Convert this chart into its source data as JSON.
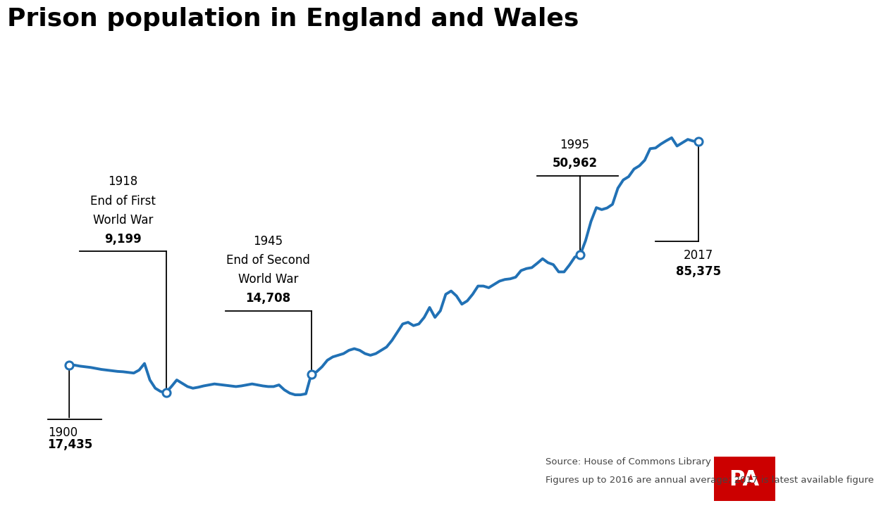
{
  "title": "Prison population in England and Wales",
  "title_fontsize": 26,
  "line_color": "#2171b5",
  "line_width": 2.8,
  "background_color": "#ffffff",
  "source_line1": "Source: House of Commons Library",
  "source_line2": "Figures up to 2016 are annual average; 2017 is latest available figure",
  "xlim": [
    1893,
    2025
  ],
  "ylim": [
    3000,
    102000
  ],
  "years": [
    1900,
    1901,
    1902,
    1903,
    1904,
    1905,
    1906,
    1907,
    1908,
    1909,
    1910,
    1911,
    1912,
    1913,
    1914,
    1915,
    1916,
    1917,
    1918,
    1919,
    1920,
    1921,
    1922,
    1923,
    1924,
    1925,
    1926,
    1927,
    1928,
    1929,
    1930,
    1931,
    1932,
    1933,
    1934,
    1935,
    1936,
    1937,
    1938,
    1939,
    1940,
    1941,
    1942,
    1943,
    1944,
    1945,
    1946,
    1947,
    1948,
    1949,
    1950,
    1951,
    1952,
    1953,
    1954,
    1955,
    1956,
    1957,
    1958,
    1959,
    1960,
    1961,
    1962,
    1963,
    1964,
    1965,
    1966,
    1967,
    1968,
    1969,
    1970,
    1971,
    1972,
    1973,
    1974,
    1975,
    1976,
    1977,
    1978,
    1979,
    1980,
    1981,
    1982,
    1983,
    1984,
    1985,
    1986,
    1987,
    1988,
    1989,
    1990,
    1991,
    1992,
    1993,
    1994,
    1995,
    1996,
    1997,
    1998,
    1999,
    2000,
    2001,
    2002,
    2003,
    2004,
    2005,
    2006,
    2007,
    2008,
    2009,
    2010,
    2011,
    2012,
    2013,
    2014,
    2015,
    2016,
    2017
  ],
  "values": [
    17435,
    17500,
    17200,
    17000,
    16800,
    16500,
    16200,
    16000,
    15800,
    15600,
    15500,
    15300,
    15100,
    16000,
    18000,
    13000,
    10500,
    9500,
    9199,
    11000,
    13000,
    12000,
    11000,
    10500,
    10800,
    11200,
    11500,
    11800,
    11600,
    11400,
    11200,
    11000,
    11200,
    11500,
    11800,
    11500,
    11200,
    11000,
    11000,
    11500,
    10000,
    9000,
    8500,
    8500,
    8800,
    14708,
    15500,
    17000,
    19000,
    20000,
    20500,
    21000,
    22000,
    22500,
    22000,
    21000,
    20500,
    21000,
    22000,
    23000,
    25000,
    27500,
    30000,
    30500,
    29500,
    30000,
    32000,
    35000,
    32000,
    34000,
    39000,
    40000,
    38500,
    36000,
    37000,
    39000,
    41500,
    41500,
    41000,
    42000,
    43000,
    43500,
    43700,
    44200,
    46200,
    46800,
    47100,
    48400,
    49800,
    48600,
    48000,
    45800,
    45800,
    47900,
    50300,
    50962,
    55300,
    61100,
    65300,
    64700,
    65200,
    66300,
    71200,
    73700,
    74700,
    77000,
    78000,
    79700,
    83200,
    83400,
    84600,
    85600,
    86500,
    84000,
    85000,
    86000,
    85500,
    85375
  ],
  "ann_1900": {
    "year": 1900,
    "value": 17435,
    "year_label": "1900",
    "val_label": "17,435"
  },
  "ann_1918": {
    "year": 1918,
    "value": 9199,
    "lines": [
      "1918",
      "End of First",
      "World War",
      "9,199"
    ]
  },
  "ann_1945": {
    "year": 1945,
    "value": 14708,
    "lines": [
      "1945",
      "End of Second",
      "World War",
      "14,708"
    ]
  },
  "ann_1995": {
    "year": 1995,
    "value": 50962,
    "lines": [
      "1995",
      "50,962"
    ]
  },
  "ann_2017": {
    "year": 2017,
    "value": 85375,
    "lines": [
      "2017",
      "85,375"
    ]
  }
}
